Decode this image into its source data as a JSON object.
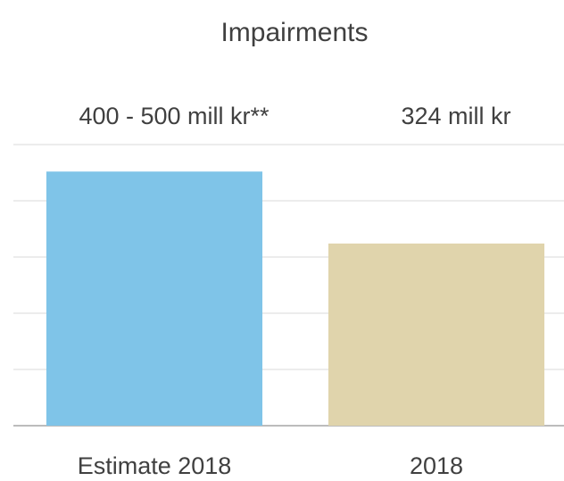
{
  "chart_data": {
    "type": "bar",
    "title": "Impairments",
    "categories": [
      "Estimate 2018",
      "2018"
    ],
    "values": [
      452,
      324
    ],
    "value_labels": [
      "400 - 500 mill kr**",
      "324 mill kr"
    ],
    "colors": [
      "#7fc4e8",
      "#e0d4ac"
    ],
    "ylim": [
      0,
      500
    ],
    "yticks": [
      0,
      100,
      200,
      300,
      400,
      500
    ],
    "grid": true
  }
}
